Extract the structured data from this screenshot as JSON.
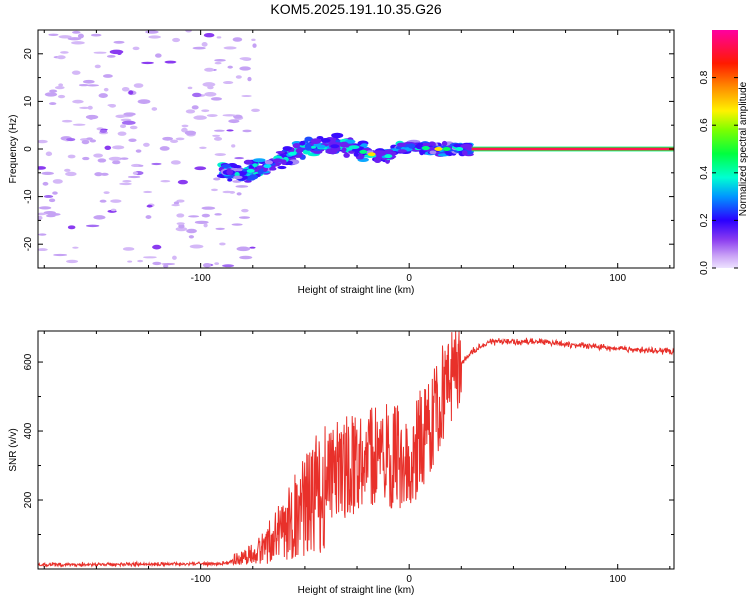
{
  "figure": {
    "title": "KOM5.2025.191.10.35.G26"
  },
  "chart_data": [
    {
      "type": "heatmap",
      "xlabel": "Height of straight line (km)",
      "ylabel": "Frequency (Hz)",
      "xlim": [
        -178,
        127
      ],
      "ylim": [
        -25,
        25
      ],
      "xticks": [
        -100,
        0,
        100
      ],
      "yticks": [
        -20,
        -10,
        0,
        10,
        20
      ],
      "colorbar": {
        "label": "Normalized spectral amplitude",
        "range": [
          0.0,
          1.0
        ],
        "ticks": [
          0.0,
          0.2,
          0.4,
          0.6,
          0.8
        ],
        "colormap": "rainbow (lavender-violet-blue-cyan-green-yellow-red-magenta)"
      },
      "features": [
        {
          "description": "scattered weak noise blobs",
          "x_range": [
            -178,
            -85
          ],
          "y_range": [
            -25,
            25
          ],
          "amplitude": 0.05
        },
        {
          "description": "signal ridge",
          "track": [
            [
              -90,
              -4.5
            ],
            [
              -80,
              -5
            ],
            [
              -70,
              -4
            ],
            [
              -60,
              -2
            ],
            [
              -50,
              0.5
            ],
            [
              -40,
              0.5
            ],
            [
              -30,
              1
            ],
            [
              -20,
              -1
            ],
            [
              -10,
              -1.5
            ],
            [
              -5,
              0
            ],
            [
              0,
              1
            ],
            [
              10,
              0
            ],
            [
              20,
              0
            ],
            [
              30,
              0
            ]
          ]
        },
        {
          "description": "steady carrier line",
          "x_range": [
            30,
            127
          ],
          "y": 0,
          "amplitude": 0.9
        }
      ]
    },
    {
      "type": "line",
      "xlabel": "Height of straight line (km)",
      "ylabel": "SNR (v/v)",
      "xlim": [
        -178,
        127
      ],
      "ylim": [
        0,
        690
      ],
      "xticks": [
        -100,
        0,
        100
      ],
      "yticks": [
        200,
        400,
        600
      ],
      "series": [
        {
          "color": "#e8302a",
          "envelope_x": [
            -178,
            -90,
            -80,
            -70,
            -60,
            -50,
            -40,
            -30,
            -20,
            -10,
            0,
            10,
            20,
            30,
            40,
            50,
            60,
            80,
            100,
            127
          ],
          "envelope_y": [
            12,
            15,
            30,
            60,
            120,
            180,
            250,
            300,
            330,
            330,
            320,
            420,
            560,
            630,
            660,
            660,
            660,
            650,
            640,
            630
          ]
        }
      ]
    }
  ]
}
